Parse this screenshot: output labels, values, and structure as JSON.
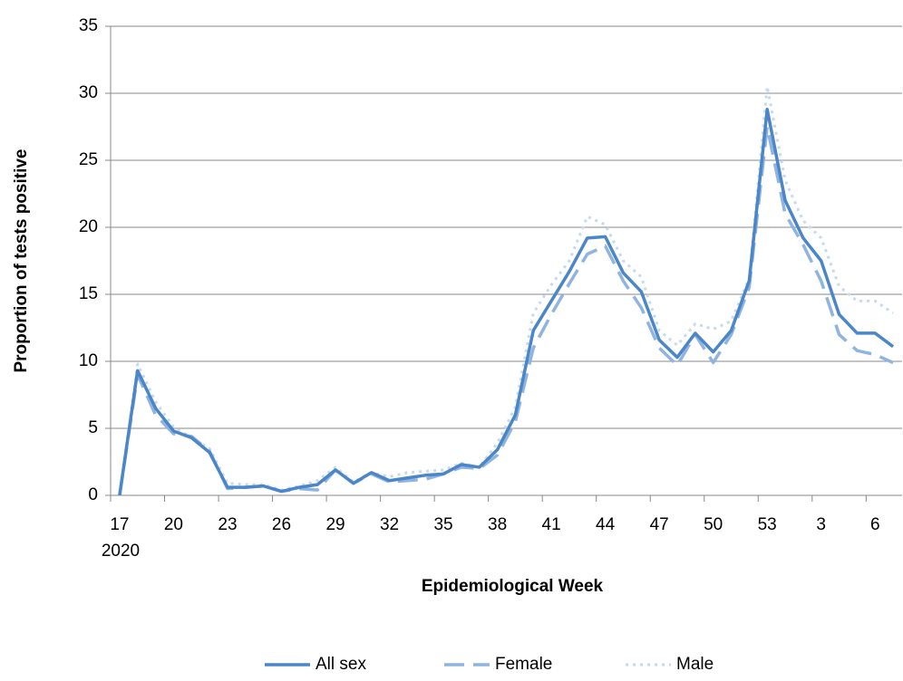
{
  "chart_data": {
    "type": "line",
    "x_label": "Epidemiological Week",
    "y_label": "Proportion of tests positive",
    "annotation": "2020",
    "categories": [
      "17",
      null,
      null,
      "20",
      null,
      null,
      "23",
      null,
      null,
      "26",
      null,
      null,
      "29",
      null,
      null,
      "32",
      null,
      null,
      "35",
      null,
      null,
      "38",
      null,
      null,
      "41",
      null,
      null,
      "44",
      null,
      null,
      "47",
      null,
      null,
      "50",
      null,
      null,
      "53",
      null,
      null,
      "3",
      null,
      null,
      "6",
      null
    ],
    "series": [
      {
        "name": "All sex",
        "color": "#4a86c8",
        "style": "solid",
        "values": [
          0,
          9.3,
          6.5,
          4.8,
          4.3,
          3.2,
          0.6,
          0.6,
          0.7,
          0.3,
          0.6,
          0.8,
          1.9,
          0.9,
          1.7,
          1.1,
          1.3,
          1.5,
          1.6,
          2.3,
          2.1,
          3.4,
          6.0,
          12.3,
          14.5,
          16.7,
          19.2,
          19.3,
          16.6,
          15.2,
          11.6,
          10.3,
          12.1,
          10.7,
          12.3,
          16.0,
          28.8,
          22.0,
          19.2,
          17.5,
          13.5,
          12.1,
          12.1,
          11.1
        ]
      },
      {
        "name": "Female",
        "color": "#8fb4e0",
        "style": "dashed",
        "values": [
          0,
          9.0,
          6.0,
          4.6,
          4.4,
          3.3,
          0.5,
          0.6,
          0.7,
          0.3,
          0.5,
          0.4,
          1.9,
          0.9,
          1.6,
          1.0,
          1.1,
          1.2,
          1.6,
          2.1,
          2.0,
          3.0,
          5.5,
          11.0,
          13.5,
          15.8,
          18.0,
          18.6,
          16.0,
          14.0,
          11.0,
          9.7,
          12.0,
          9.9,
          12.0,
          15.5,
          27.5,
          21.0,
          18.7,
          16.0,
          12.0,
          10.8,
          10.5,
          9.9
        ]
      },
      {
        "name": "Male",
        "color": "#c5d9f1",
        "style": "dotted",
        "values": [
          0,
          9.8,
          7.0,
          5.1,
          4.3,
          3.5,
          0.9,
          0.8,
          0.8,
          0.4,
          0.7,
          1.1,
          2.1,
          1.0,
          1.7,
          1.4,
          1.7,
          1.8,
          1.9,
          2.4,
          2.1,
          3.9,
          6.6,
          13.6,
          15.7,
          17.5,
          20.8,
          20.2,
          17.5,
          16.3,
          12.3,
          11.2,
          12.8,
          12.4,
          13.0,
          16.2,
          30.5,
          23.5,
          20.5,
          19.2,
          15.6,
          14.5,
          14.5,
          13.6
        ]
      }
    ],
    "ylim": [
      0,
      35
    ],
    "yticks": [
      0,
      5,
      10,
      15,
      20,
      25,
      30,
      35
    ],
    "grid": true,
    "legend": "bottom"
  }
}
